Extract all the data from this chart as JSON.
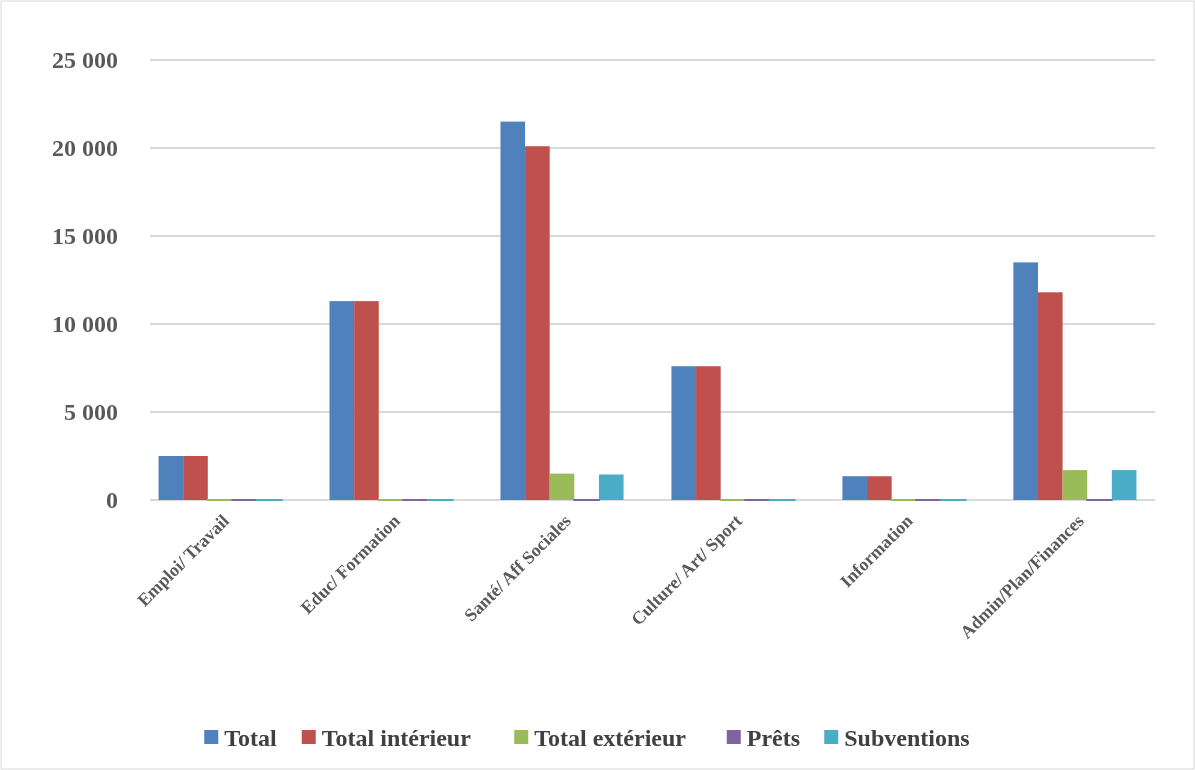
{
  "chart_data": {
    "type": "bar",
    "categories": [
      "Emploi/ Travail",
      "Educ/ Formation",
      "Santé/ Aff Sociales",
      "Culture/ Art/ Sport",
      "Information",
      "Admin/Plan/Finances"
    ],
    "series": [
      {
        "name": "Total",
        "color": "#4f81bd",
        "values": [
          2500,
          11300,
          21500,
          7600,
          1350,
          13500
        ]
      },
      {
        "name": "Total intérieur",
        "color": "#c0504d",
        "values": [
          2500,
          11300,
          20100,
          7600,
          1350,
          11800
        ]
      },
      {
        "name": "Total extérieur",
        "color": "#9bbb59",
        "values": [
          0,
          0,
          1500,
          0,
          0,
          1700
        ]
      },
      {
        "name": "Prêts",
        "color": "#8064a2",
        "values": [
          0,
          0,
          0,
          0,
          0,
          0
        ]
      },
      {
        "name": "Subventions",
        "color": "#4bacc6",
        "values": [
          0,
          0,
          1450,
          0,
          0,
          1700
        ]
      }
    ],
    "ylim": [
      0,
      25000
    ],
    "yticks": [
      {
        "value": 0,
        "label": "0"
      },
      {
        "value": 5000,
        "label": "5 000"
      },
      {
        "value": 10000,
        "label": "10 000"
      },
      {
        "value": 15000,
        "label": "15 000"
      },
      {
        "value": 20000,
        "label": "20 000"
      },
      {
        "value": 25000,
        "label": "25 000"
      }
    ],
    "grid": "y",
    "legend": "bottom"
  }
}
